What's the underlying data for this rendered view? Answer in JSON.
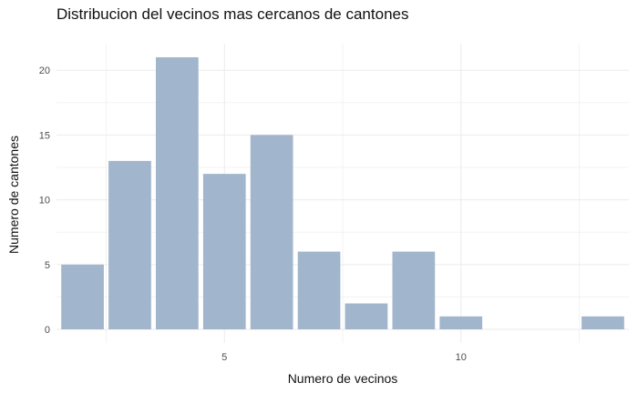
{
  "chart_data": {
    "type": "bar",
    "title": "Distribucion del vecinos mas cercanos de cantones",
    "xlabel": "Numero de vecinos",
    "ylabel": "Numero de cantones",
    "x": [
      2,
      3,
      4,
      5,
      6,
      7,
      8,
      9,
      10,
      13
    ],
    "values": [
      5,
      13,
      21,
      12,
      15,
      6,
      2,
      6,
      1,
      1
    ],
    "xlim": [
      1.45,
      13.55
    ],
    "ylim": [
      -1.05,
      22.05
    ],
    "xticks": [
      5,
      10
    ],
    "xtick_labels": [
      "5",
      "10"
    ],
    "yticks": [
      0,
      5,
      10,
      15,
      20
    ],
    "ytick_labels": [
      "0",
      "5",
      "10",
      "15",
      "20"
    ],
    "grid": true,
    "bar_color": "#a1b5cc",
    "grid_color": "#ebebeb"
  }
}
